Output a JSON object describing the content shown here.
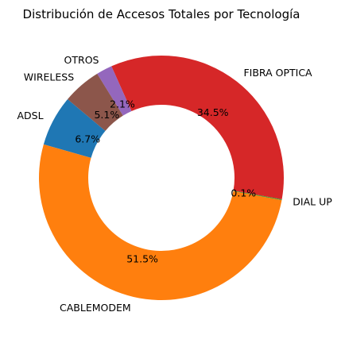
{
  "chart_data": {
    "type": "pie",
    "variant": "donut",
    "title": "Distribución de Accesos Totales por Tecnología",
    "slices": [
      {
        "label": "ADSL",
        "value": 6.7,
        "pct_label": "6.7%",
        "color": "#1f77b4"
      },
      {
        "label": "CABLEMODEM",
        "value": 51.5,
        "pct_label": "51.5%",
        "color": "#ff7f0e"
      },
      {
        "label": "DIAL UP",
        "value": 0.1,
        "pct_label": "0.1%",
        "color": "#2ca02c"
      },
      {
        "label": "FIBRA OPTICA",
        "value": 34.5,
        "pct_label": "34.5%",
        "color": "#d62728"
      },
      {
        "label": "OTROS",
        "value": 2.1,
        "pct_label": "2.1%",
        "color": "#9467bd"
      },
      {
        "label": "WIRELESS",
        "value": 5.1,
        "pct_label": "5.1%",
        "color": "#8c564b"
      }
    ],
    "start_angle_deg": 140,
    "direction": "counterclockwise"
  }
}
